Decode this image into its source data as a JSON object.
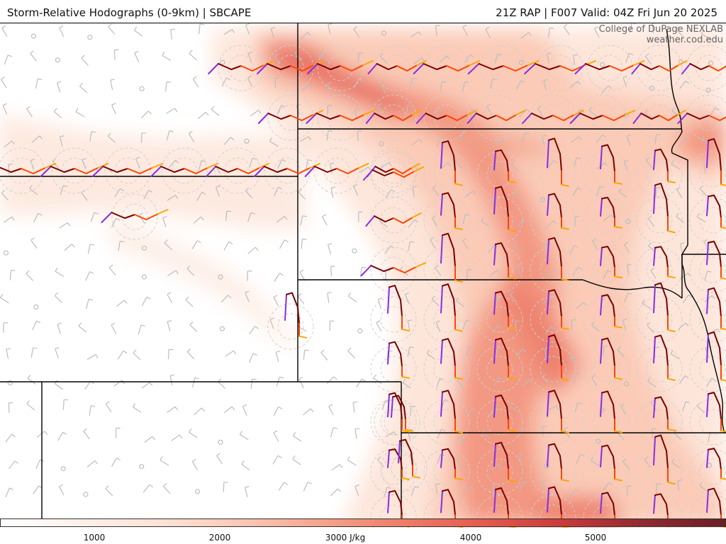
{
  "header": {
    "title_left": "Storm-Relative Hodographs (0-9km) | SBCAPE",
    "title_right": "21Z RAP | F007 Valid: 04Z Fri Jun 20 2025"
  },
  "credit": {
    "line1": "College of DuPage NEXLAB",
    "line2": "weather.cod.edu"
  },
  "colorbar": {
    "labels": [
      "1000",
      "2000",
      "3000 J/kg",
      "4000",
      "5000"
    ],
    "colors": [
      "#fff0ea",
      "#fde2d6",
      "#fbc8b4",
      "#f6a38b",
      "#ee7d68",
      "#e35b4d",
      "#c73a3a",
      "#8e2a30",
      "#6b1e26"
    ]
  },
  "colors": {
    "hodo_low": "#7a0000",
    "hodo_mid": "#ff4500",
    "hodo_upper": "#ffa500",
    "hodo_top": "#8a2be2",
    "barb": "#b0b0b0",
    "ring": "#c8c8c8"
  }
}
